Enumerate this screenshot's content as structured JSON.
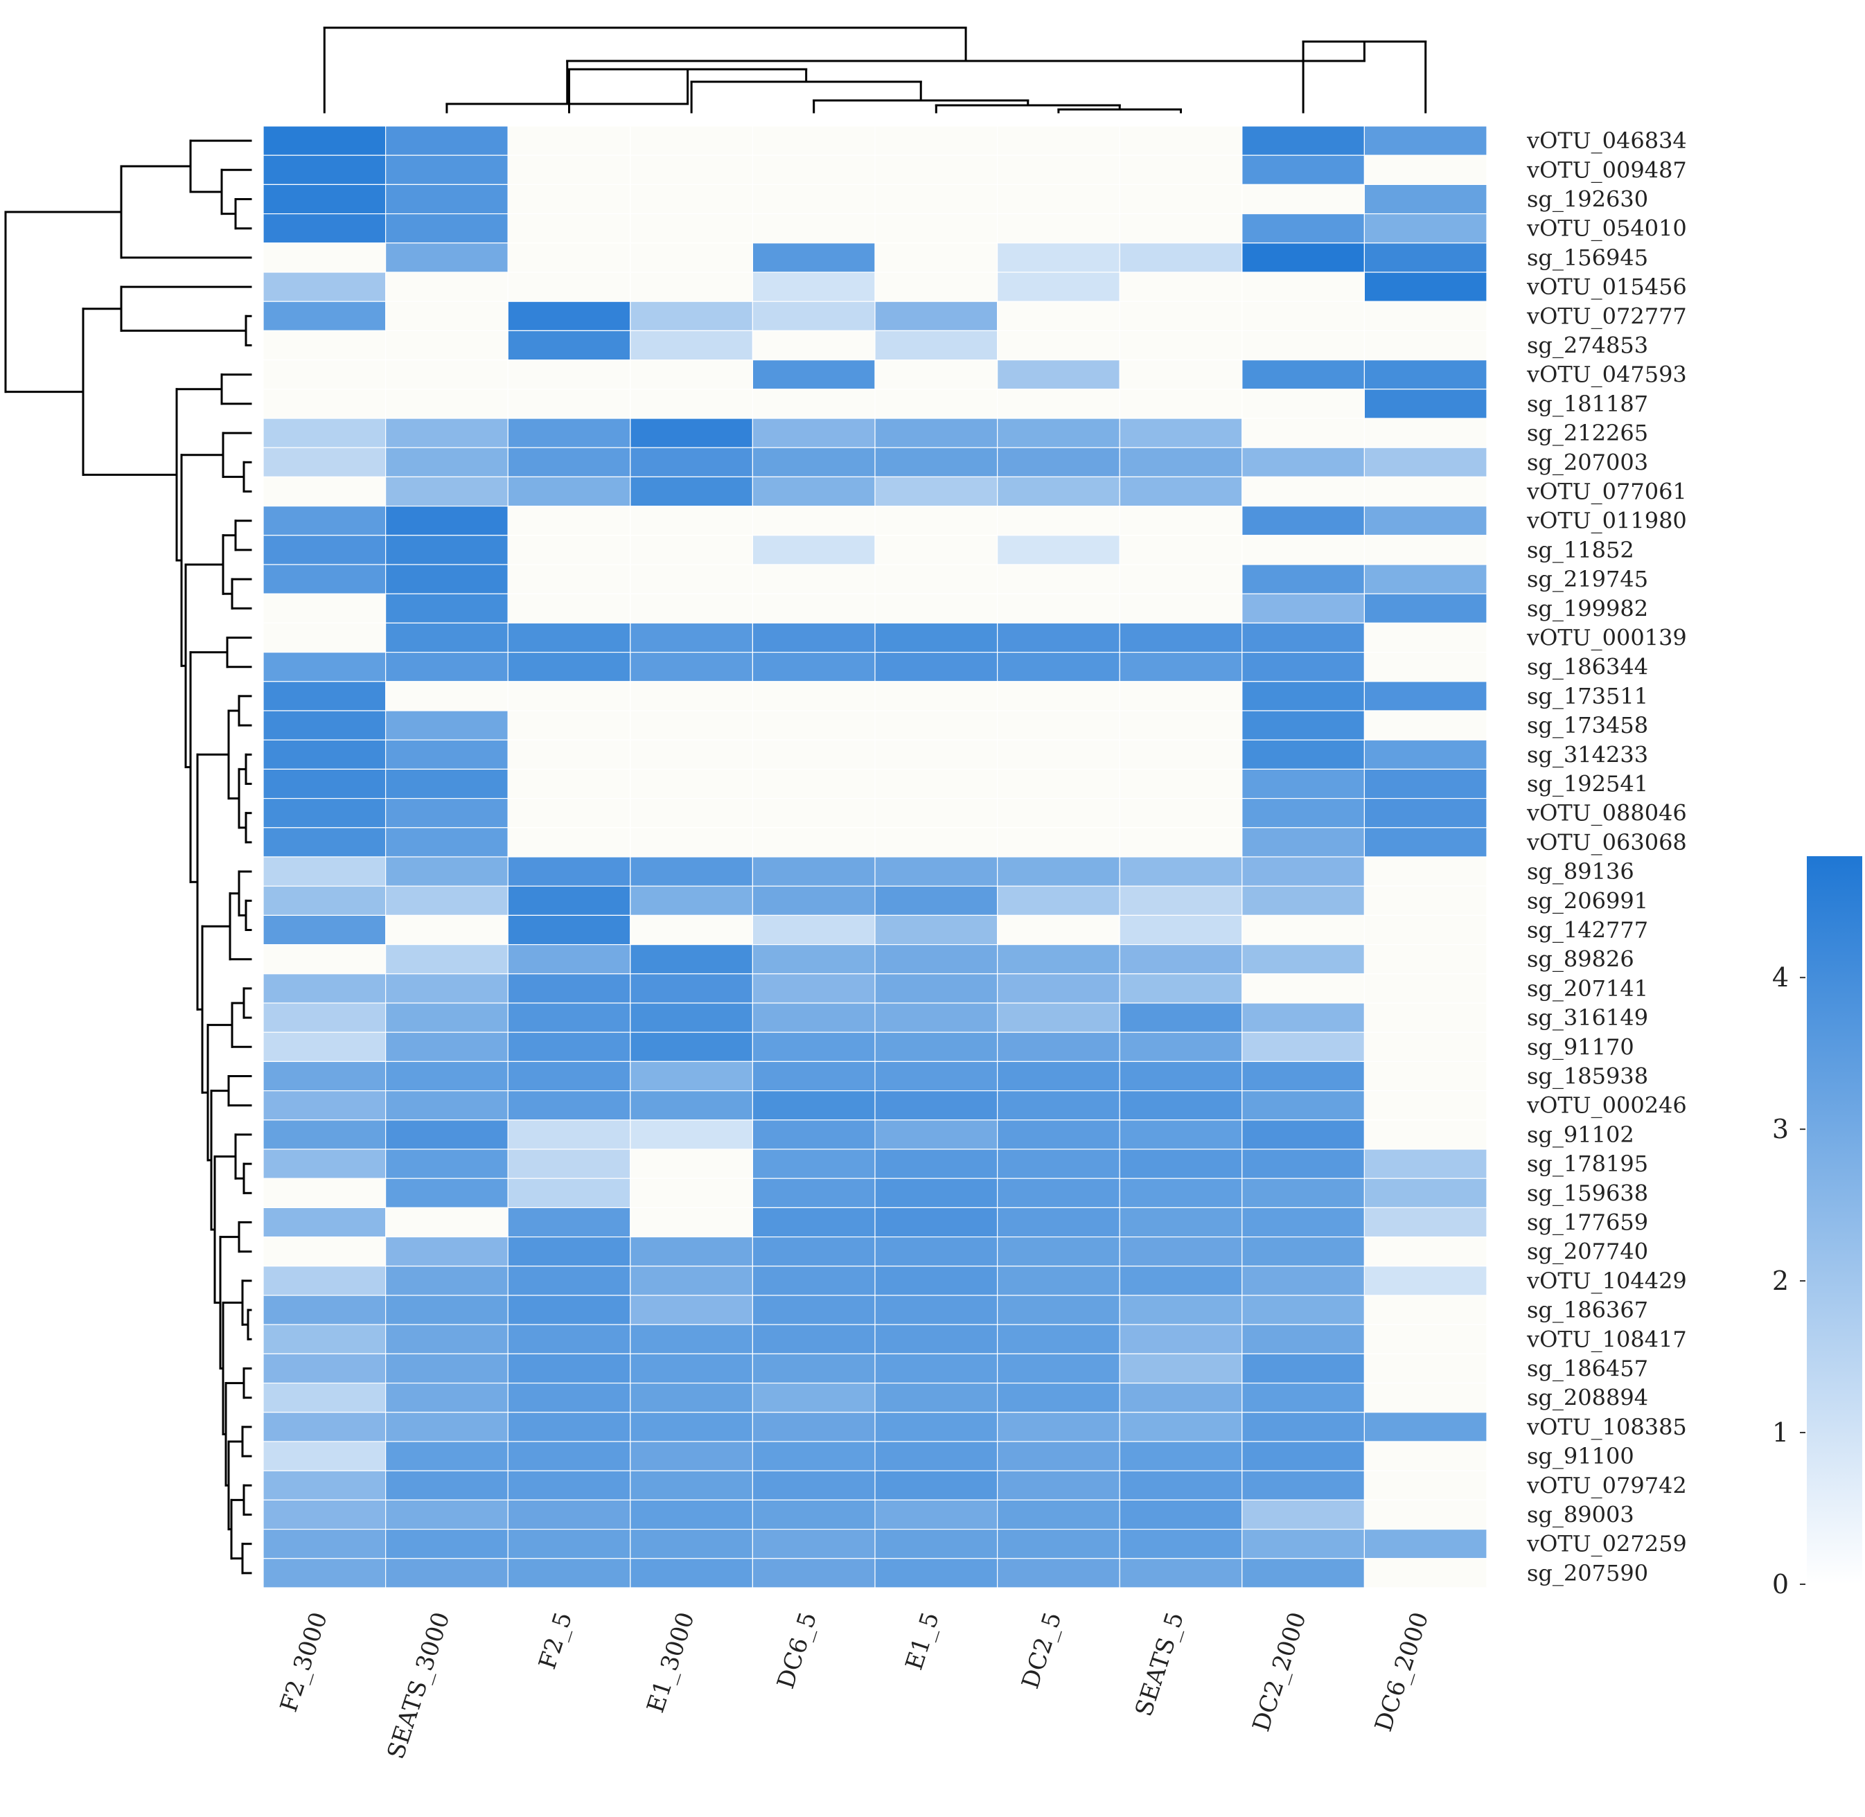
{
  "chart_data": {
    "type": "heatmap",
    "title": "",
    "columns": [
      "F2_3000",
      "SEATS_3000",
      "F2_5",
      "E1_3000",
      "DC6_5",
      "E1_5",
      "DC2_5",
      "SEATS_5",
      "DC2_2000",
      "DC6_2000"
    ],
    "rows": [
      "vOTU_046834",
      "vOTU_009487",
      "sg_192630",
      "vOTU_054010",
      "sg_156945",
      "vOTU_015456",
      "vOTU_072777",
      "sg_274853",
      "vOTU_047593",
      "sg_181187",
      "sg_212265",
      "sg_207003",
      "vOTU_077061",
      "vOTU_011980",
      "sg_11852",
      "sg_219745",
      "sg_199982",
      "vOTU_000139",
      "sg_186344",
      "sg_173511",
      "sg_173458",
      "sg_314233",
      "sg_192541",
      "vOTU_088046",
      "vOTU_063068",
      "sg_89136",
      "sg_206991",
      "sg_142777",
      "sg_89826",
      "sg_207141",
      "sg_316149",
      "sg_91170",
      "sg_185938",
      "vOTU_000246",
      "sg_91102",
      "sg_178195",
      "sg_159638",
      "sg_177659",
      "sg_207740",
      "vOTU_104429",
      "sg_186367",
      "vOTU_108417",
      "sg_186457",
      "sg_208894",
      "vOTU_108385",
      "sg_91100",
      "vOTU_079742",
      "sg_89003",
      "vOTU_027259",
      "sg_207590"
    ],
    "values": [
      [
        4.6,
        3.8,
        0,
        0,
        0,
        0,
        0,
        0,
        4.3,
        3.5
      ],
      [
        4.5,
        3.7,
        0,
        0,
        0,
        0,
        0,
        0,
        3.7,
        0
      ],
      [
        4.5,
        3.7,
        0,
        0,
        0,
        0,
        0,
        0,
        0,
        3.3
      ],
      [
        4.4,
        3.7,
        0,
        0,
        0,
        0,
        0,
        0,
        3.6,
        2.8
      ],
      [
        0,
        3.0,
        0,
        0,
        3.6,
        0,
        1.0,
        1.2,
        4.7,
        4.2
      ],
      [
        2.0,
        0,
        0,
        0,
        1.0,
        0,
        1.0,
        0,
        0,
        4.6
      ],
      [
        3.4,
        0,
        4.4,
        1.8,
        1.3,
        2.6,
        0,
        0,
        0,
        0
      ],
      [
        0,
        0,
        4.1,
        1.2,
        0,
        1.2,
        0,
        0,
        0,
        0
      ],
      [
        0,
        0,
        0,
        0,
        3.7,
        0,
        2.0,
        0,
        3.9,
        4.0
      ],
      [
        0,
        0,
        0,
        0,
        0,
        0,
        0,
        0,
        0,
        4.2
      ],
      [
        1.6,
        2.5,
        3.5,
        4.4,
        2.6,
        3.0,
        2.8,
        2.4,
        0,
        0
      ],
      [
        1.4,
        2.7,
        3.5,
        3.8,
        3.3,
        3.3,
        3.2,
        2.9,
        2.5,
        2.0
      ],
      [
        0,
        2.3,
        2.8,
        4.0,
        2.7,
        1.8,
        2.2,
        2.5,
        0,
        0
      ],
      [
        3.5,
        4.4,
        0,
        0,
        0,
        0,
        0,
        0,
        3.8,
        3.0
      ],
      [
        3.8,
        4.2,
        0,
        0,
        1.0,
        0,
        0.9,
        0,
        0,
        0
      ],
      [
        3.6,
        4.2,
        0,
        0,
        0,
        0,
        0,
        0,
        3.6,
        2.8
      ],
      [
        0,
        4.0,
        0,
        0,
        0,
        0,
        0,
        0,
        2.6,
        3.7
      ],
      [
        0,
        3.9,
        3.9,
        3.6,
        3.8,
        3.9,
        3.8,
        3.8,
        3.8,
        0
      ],
      [
        3.4,
        3.6,
        3.9,
        3.5,
        3.6,
        3.8,
        3.7,
        3.5,
        3.8,
        0
      ],
      [
        4.1,
        0,
        0,
        0,
        0,
        0,
        0,
        0,
        4.0,
        3.8
      ],
      [
        4.1,
        3.1,
        0,
        0,
        0,
        0,
        0,
        0,
        4.0,
        0
      ],
      [
        4.1,
        3.5,
        0,
        0,
        0,
        0,
        0,
        0,
        4.0,
        3.4
      ],
      [
        4.1,
        3.9,
        0,
        0,
        0,
        0,
        0,
        0,
        3.4,
        3.8
      ],
      [
        4.0,
        3.5,
        0,
        0,
        0,
        0,
        0,
        0,
        3.4,
        3.8
      ],
      [
        3.9,
        3.4,
        0,
        0,
        0,
        0,
        0,
        0,
        3.0,
        3.7
      ],
      [
        1.5,
        2.8,
        3.8,
        3.6,
        3.1,
        3.0,
        2.8,
        2.4,
        2.6,
        0
      ],
      [
        2.2,
        1.8,
        4.2,
        2.8,
        3.1,
        3.5,
        1.9,
        1.4,
        2.3,
        0
      ],
      [
        3.5,
        0,
        4.2,
        0,
        1.2,
        2.3,
        0,
        1.2,
        0,
        0
      ],
      [
        0,
        1.6,
        3.0,
        4.0,
        2.8,
        3.0,
        2.8,
        2.6,
        2.2,
        0
      ],
      [
        2.4,
        2.5,
        3.8,
        3.8,
        2.6,
        3.0,
        2.6,
        2.2,
        0,
        0
      ],
      [
        1.7,
        2.8,
        3.7,
        3.9,
        2.9,
        2.9,
        2.3,
        3.6,
        2.5,
        0
      ],
      [
        1.3,
        3.0,
        3.7,
        4.0,
        3.4,
        3.3,
        3.2,
        3.1,
        1.7,
        0
      ],
      [
        3.1,
        3.4,
        3.6,
        2.7,
        3.5,
        3.5,
        3.6,
        3.6,
        3.6,
        0
      ],
      [
        2.6,
        3.1,
        3.5,
        3.3,
        3.9,
        3.8,
        3.6,
        3.7,
        3.3,
        0
      ],
      [
        3.3,
        3.8,
        1.2,
        1.0,
        3.5,
        3.0,
        3.5,
        3.4,
        3.8,
        0
      ],
      [
        2.4,
        3.4,
        1.4,
        0,
        3.4,
        3.6,
        3.5,
        3.6,
        3.6,
        1.9
      ],
      [
        0,
        3.4,
        1.5,
        0,
        3.5,
        3.7,
        3.5,
        3.4,
        3.3,
        2.2
      ],
      [
        2.5,
        0,
        3.5,
        0,
        3.7,
        3.8,
        3.5,
        3.3,
        3.4,
        1.4
      ],
      [
        0,
        2.6,
        3.7,
        3.1,
        3.5,
        3.5,
        3.3,
        3.2,
        3.3,
        0
      ],
      [
        1.7,
        3.1,
        3.6,
        2.9,
        3.5,
        3.6,
        3.3,
        3.4,
        3.0,
        1.0
      ],
      [
        3.0,
        3.3,
        3.7,
        2.6,
        3.5,
        3.5,
        3.3,
        2.8,
        2.8,
        0
      ],
      [
        2.2,
        3.1,
        3.5,
        3.4,
        3.5,
        3.5,
        3.4,
        2.6,
        3.1,
        0
      ],
      [
        2.6,
        3.1,
        3.6,
        3.4,
        3.3,
        3.4,
        3.4,
        2.3,
        3.6,
        0
      ],
      [
        1.5,
        3.0,
        3.5,
        3.3,
        2.8,
        3.3,
        3.4,
        2.9,
        3.4,
        0
      ],
      [
        2.6,
        2.9,
        3.5,
        3.4,
        3.2,
        3.4,
        3.0,
        2.8,
        3.5,
        3.3
      ],
      [
        1.2,
        3.4,
        3.5,
        3.2,
        3.4,
        3.5,
        3.2,
        3.4,
        3.6,
        0
      ],
      [
        2.5,
        3.5,
        3.5,
        3.3,
        3.5,
        3.6,
        3.2,
        3.5,
        3.5,
        0
      ],
      [
        2.6,
        2.9,
        3.2,
        3.4,
        3.3,
        3.0,
        3.3,
        3.5,
        2.0,
        0
      ],
      [
        3.0,
        3.4,
        3.3,
        3.3,
        3.1,
        3.3,
        3.3,
        3.4,
        2.8,
        2.8
      ],
      [
        3.0,
        3.2,
        3.3,
        3.4,
        3.2,
        3.4,
        3.2,
        3.1,
        3.3,
        0
      ]
    ],
    "colorbar": {
      "min": 0,
      "max": 4.8,
      "ticks": [
        0,
        1,
        2,
        3,
        4
      ],
      "color_low": "#ffffff",
      "color_high": "#1f77d4"
    },
    "empty_cell_color": "#fcfcf8",
    "dendrogram_color": "#000000",
    "row_dendrogram": "hierarchical clustering (left)",
    "column_dendrogram": "hierarchical clustering (top)"
  }
}
